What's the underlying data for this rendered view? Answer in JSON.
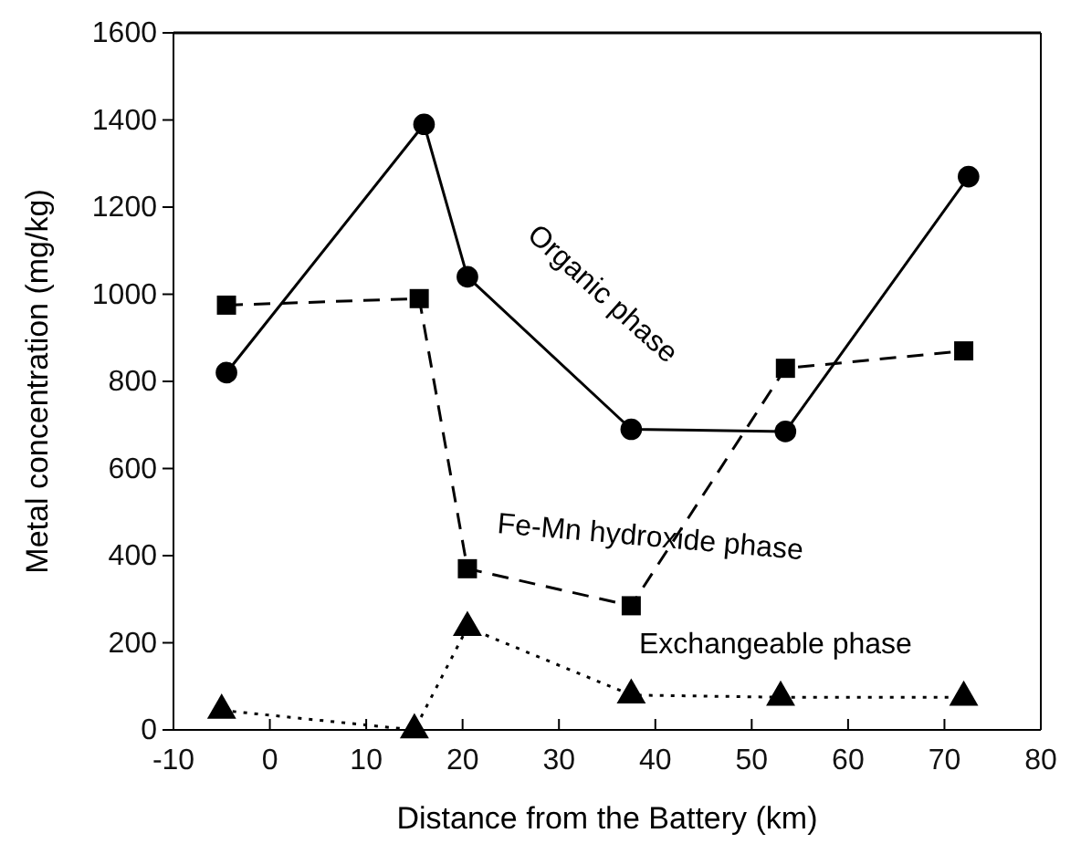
{
  "chart_data": {
    "type": "line",
    "xlabel": "Distance from the Battery (km)",
    "ylabel": "Metal concentration (mg/kg)",
    "xlim": [
      -10,
      80
    ],
    "xticks": [
      -10,
      0,
      10,
      20,
      30,
      40,
      50,
      60,
      70,
      80
    ],
    "ylim": [
      0,
      1600
    ],
    "yticks": [
      0,
      200,
      400,
      600,
      800,
      1000,
      1200,
      1400,
      1600
    ],
    "grid": false,
    "series": [
      {
        "name": "Organic phase",
        "color": "#000000",
        "marker": "circle",
        "line_style": "solid",
        "x": [
          -4.5,
          16,
          20.5,
          37.5,
          53.5,
          72.5
        ],
        "values": [
          820,
          1390,
          1040,
          690,
          685,
          1270
        ]
      },
      {
        "name": "Fe-Mn hydroxide phase",
        "color": "#000000",
        "marker": "square",
        "line_style": "dashed",
        "x": [
          -4.5,
          15.5,
          20.5,
          37.5,
          53.5,
          72
        ],
        "values": [
          975,
          990,
          370,
          285,
          830,
          870
        ]
      },
      {
        "name": "Exchangeable phase",
        "color": "#000000",
        "marker": "triangle",
        "line_style": "dotted",
        "x": [
          -5,
          15,
          20.5,
          37.5,
          53,
          72
        ],
        "values": [
          45,
          0,
          235,
          80,
          75,
          75
        ]
      }
    ]
  }
}
